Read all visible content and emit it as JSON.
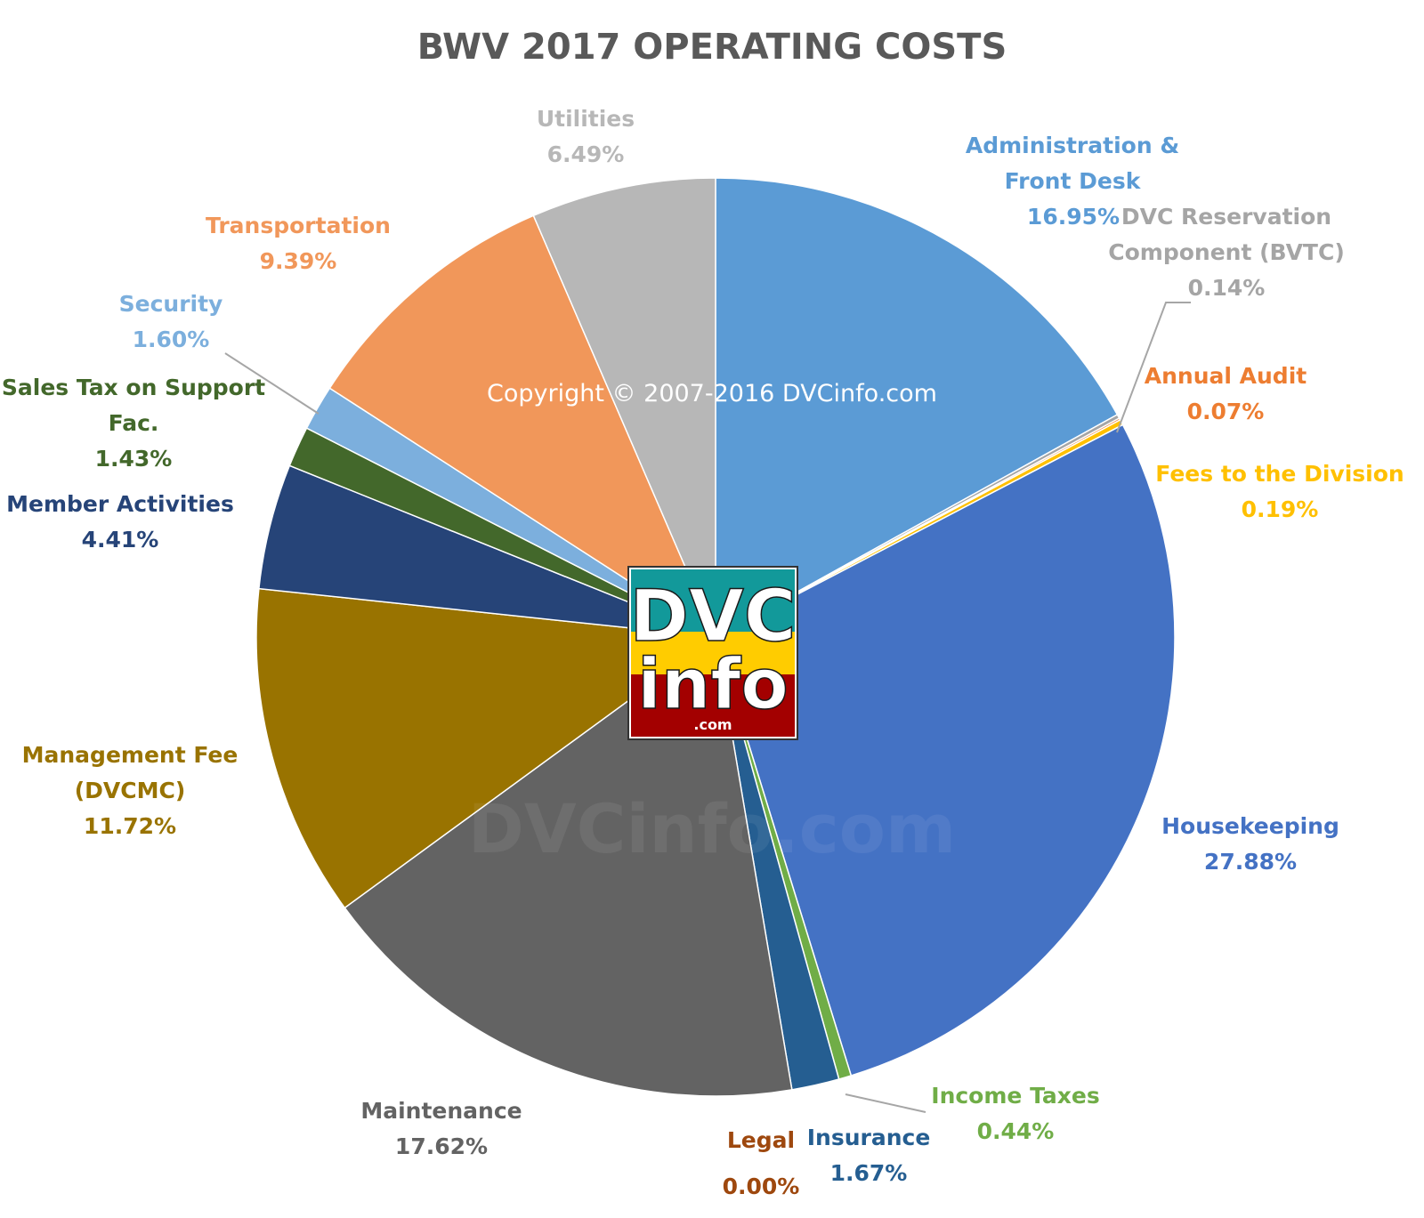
{
  "chart_data": {
    "type": "pie",
    "title": "BWV 2017 OPERATING COSTS",
    "unit": "%",
    "slices": [
      {
        "name": [
          "Administration &",
          "Front Desk"
        ],
        "value": 16.95,
        "label": "16.95%",
        "color": "#5b9bd5",
        "label_color": "#5b9bd5"
      },
      {
        "name": [
          "DVC Reservation",
          "Component (BVTC)"
        ],
        "value": 0.14,
        "label": "0.14%",
        "color": "#a5a5a5",
        "label_color": "#a5a5a5"
      },
      {
        "name": [
          "Annual Audit"
        ],
        "value": 0.07,
        "label": "0.07%",
        "color": "#ed7d31",
        "label_color": "#ed7d31"
      },
      {
        "name": [
          "Fees to the Division"
        ],
        "value": 0.19,
        "label": "0.19%",
        "color": "#ffc000",
        "label_color": "#ffc000"
      },
      {
        "name": [
          "Housekeeping"
        ],
        "value": 27.88,
        "label": "27.88%",
        "color": "#4472c4",
        "label_color": "#4472c4"
      },
      {
        "name": [
          "Income Taxes"
        ],
        "value": 0.44,
        "label": "0.44%",
        "color": "#70ad47",
        "label_color": "#70ad47"
      },
      {
        "name": [
          "Insurance"
        ],
        "value": 1.67,
        "label": "1.67%",
        "color": "#255e91",
        "label_color": "#255e91"
      },
      {
        "name": [
          "Legal"
        ],
        "value": 0.0,
        "label": "0.00%",
        "color": "#9e480e",
        "label_color": "#9e480e"
      },
      {
        "name": [
          "Maintenance"
        ],
        "value": 17.62,
        "label": "17.62%",
        "color": "#636363",
        "label_color": "#636363"
      },
      {
        "name": [
          "Management Fee",
          "(DVCMC)"
        ],
        "value": 11.72,
        "label": "11.72%",
        "color": "#997300",
        "label_color": "#997300"
      },
      {
        "name": [
          "Member Activities"
        ],
        "value": 4.41,
        "label": "4.41%",
        "color": "#264478",
        "label_color": "#264478"
      },
      {
        "name": [
          "Sales Tax on Support",
          "Fac."
        ],
        "value": 1.43,
        "label": "1.43%",
        "color": "#43682b",
        "label_color": "#43682b"
      },
      {
        "name": [
          "Security"
        ],
        "value": 1.6,
        "label": "1.60%",
        "color": "#7cafdd",
        "label_color": "#7cafdd"
      },
      {
        "name": [
          "Transportation"
        ],
        "value": 9.39,
        "label": "9.39%",
        "color": "#f1975a",
        "label_color": "#f1975a"
      },
      {
        "name": [
          "Utilities"
        ],
        "value": 6.49,
        "label": "6.49%",
        "color": "#b7b7b7",
        "label_color": "#b7b7b7"
      }
    ]
  },
  "copyright": "Copyright © 2007-2016 DVCinfo.com",
  "watermark": "DVCinfo.com",
  "logo": {
    "line1": "DVC",
    "line2": "info",
    "line3": ".com"
  }
}
